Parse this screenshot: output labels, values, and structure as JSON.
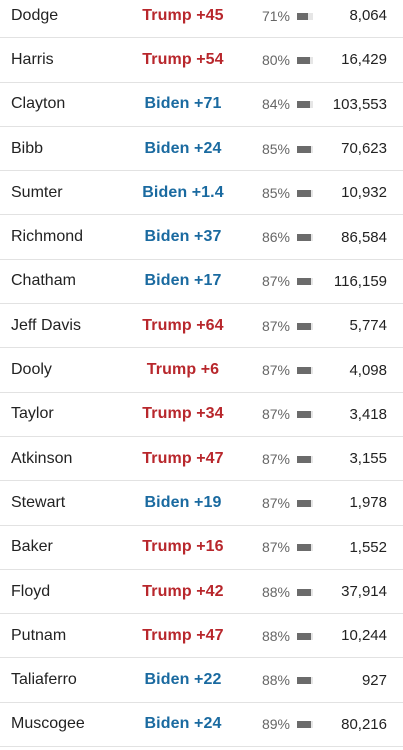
{
  "colors": {
    "trump": "#b8272c",
    "biden": "#1a6aa0",
    "bar": "#6b6b6b",
    "bar_track": "#e6e6e6",
    "divider": "#e2e2e2"
  },
  "rows": [
    {
      "county": "Dodge",
      "leader": "Trump +45",
      "party": "trump",
      "reporting": "71%",
      "reporting_fraction": 0.71,
      "votes": "8,064"
    },
    {
      "county": "Harris",
      "leader": "Trump +54",
      "party": "trump",
      "reporting": "80%",
      "reporting_fraction": 0.8,
      "votes": "16,429"
    },
    {
      "county": "Clayton",
      "leader": "Biden +71",
      "party": "biden",
      "reporting": "84%",
      "reporting_fraction": 0.84,
      "votes": "103,553"
    },
    {
      "county": "Bibb",
      "leader": "Biden +24",
      "party": "biden",
      "reporting": "85%",
      "reporting_fraction": 0.85,
      "votes": "70,623"
    },
    {
      "county": "Sumter",
      "leader": "Biden +1.4",
      "party": "biden",
      "reporting": "85%",
      "reporting_fraction": 0.85,
      "votes": "10,932"
    },
    {
      "county": "Richmond",
      "leader": "Biden +37",
      "party": "biden",
      "reporting": "86%",
      "reporting_fraction": 0.86,
      "votes": "86,584"
    },
    {
      "county": "Chatham",
      "leader": "Biden +17",
      "party": "biden",
      "reporting": "87%",
      "reporting_fraction": 0.87,
      "votes": "116,159"
    },
    {
      "county": "Jeff Davis",
      "leader": "Trump +64",
      "party": "trump",
      "reporting": "87%",
      "reporting_fraction": 0.87,
      "votes": "5,774"
    },
    {
      "county": "Dooly",
      "leader": "Trump +6",
      "party": "trump",
      "reporting": "87%",
      "reporting_fraction": 0.87,
      "votes": "4,098"
    },
    {
      "county": "Taylor",
      "leader": "Trump +34",
      "party": "trump",
      "reporting": "87%",
      "reporting_fraction": 0.87,
      "votes": "3,418"
    },
    {
      "county": "Atkinson",
      "leader": "Trump +47",
      "party": "trump",
      "reporting": "87%",
      "reporting_fraction": 0.87,
      "votes": "3,155"
    },
    {
      "county": "Stewart",
      "leader": "Biden +19",
      "party": "biden",
      "reporting": "87%",
      "reporting_fraction": 0.87,
      "votes": "1,978"
    },
    {
      "county": "Baker",
      "leader": "Trump +16",
      "party": "trump",
      "reporting": "87%",
      "reporting_fraction": 0.87,
      "votes": "1,552"
    },
    {
      "county": "Floyd",
      "leader": "Trump +42",
      "party": "trump",
      "reporting": "88%",
      "reporting_fraction": 0.88,
      "votes": "37,914"
    },
    {
      "county": "Putnam",
      "leader": "Trump +47",
      "party": "trump",
      "reporting": "88%",
      "reporting_fraction": 0.88,
      "votes": "10,244"
    },
    {
      "county": "Taliaferro",
      "leader": "Biden +22",
      "party": "biden",
      "reporting": "88%",
      "reporting_fraction": 0.88,
      "votes": "927"
    },
    {
      "county": "Muscogee",
      "leader": "Biden +24",
      "party": "biden",
      "reporting": "89%",
      "reporting_fraction": 0.89,
      "votes": "80,216"
    }
  ]
}
